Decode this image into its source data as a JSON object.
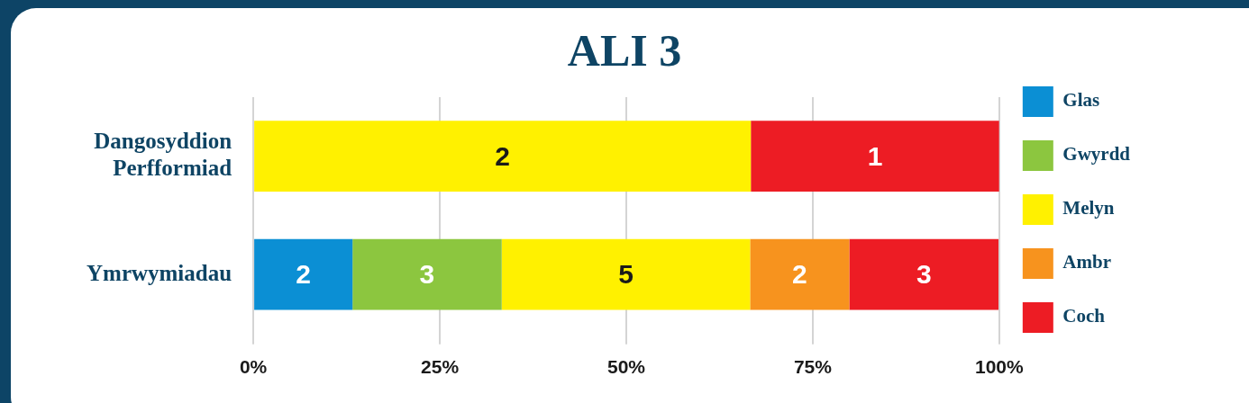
{
  "chart_data": {
    "type": "bar",
    "title": "ALI 3",
    "orientation": "horizontal",
    "stacked": true,
    "categories": [
      "Dangosyddion Perfformiad",
      "Ymrwymiadau"
    ],
    "series": [
      {
        "name": "Glas",
        "color": "#0b8fd4",
        "values": [
          null,
          13.3
        ]
      },
      {
        "name": "Gwyrdd",
        "color": "#8cc63f",
        "values": [
          null,
          20
        ]
      },
      {
        "name": "Melyn",
        "color": "#fff100",
        "values": [
          66.7,
          33.3
        ]
      },
      {
        "name": "Ambr",
        "color": "#f7931e",
        "values": [
          null,
          13.3
        ]
      },
      {
        "name": "Coch",
        "color": "#ed1c24",
        "values": [
          33.3,
          20
        ]
      }
    ],
    "annotations": [
      "2",
      "1",
      "2",
      "3",
      "5",
      "2",
      "3"
    ],
    "xlim": [
      0,
      100
    ],
    "xticks": [
      {
        "value": 0,
        "label": "0%"
      },
      {
        "value": 25,
        "label": "25%"
      },
      {
        "value": 50,
        "label": "50%"
      },
      {
        "value": 75,
        "label": "75%"
      },
      {
        "value": 100,
        "label": "100%"
      }
    ],
    "grid": "x",
    "legend": "right"
  }
}
